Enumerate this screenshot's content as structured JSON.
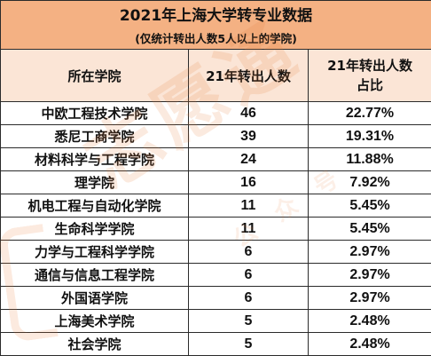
{
  "title": "2021年上海大学转专业数据",
  "subtitle": "(仅统计转出人数5人以上的学院)",
  "headers": {
    "school": "所在学院",
    "count": "21年转出人数",
    "ratio_line1": "21年转出人数",
    "ratio_line2": "占比"
  },
  "rows": [
    {
      "school": "中欧工程技术学院",
      "count": "46",
      "ratio": "22.77%"
    },
    {
      "school": "悉尼工商学院",
      "count": "39",
      "ratio": "19.31%"
    },
    {
      "school": "材料科学与工程学院",
      "count": "24",
      "ratio": "11.88%"
    },
    {
      "school": "理学院",
      "count": "16",
      "ratio": "7.92%"
    },
    {
      "school": "机电工程与自动化学院",
      "count": "11",
      "ratio": "5.45%"
    },
    {
      "school": "生命科学学院",
      "count": "11",
      "ratio": "5.45%"
    },
    {
      "school": "力学与工程科学学院",
      "count": "6",
      "ratio": "2.97%"
    },
    {
      "school": "通信与信息工程学院",
      "count": "6",
      "ratio": "2.97%"
    },
    {
      "school": "外国语学院",
      "count": "6",
      "ratio": "2.97%"
    },
    {
      "school": "上海美术学院",
      "count": "5",
      "ratio": "2.48%"
    },
    {
      "school": "社会学院",
      "count": "5",
      "ratio": "2.48%"
    }
  ],
  "watermark": {
    "main": "志愿通",
    "sub": "公众号"
  },
  "colors": {
    "title_bg": "#f4b183",
    "header_bg": "#fbe5d6",
    "watermark": "#e87d37"
  }
}
